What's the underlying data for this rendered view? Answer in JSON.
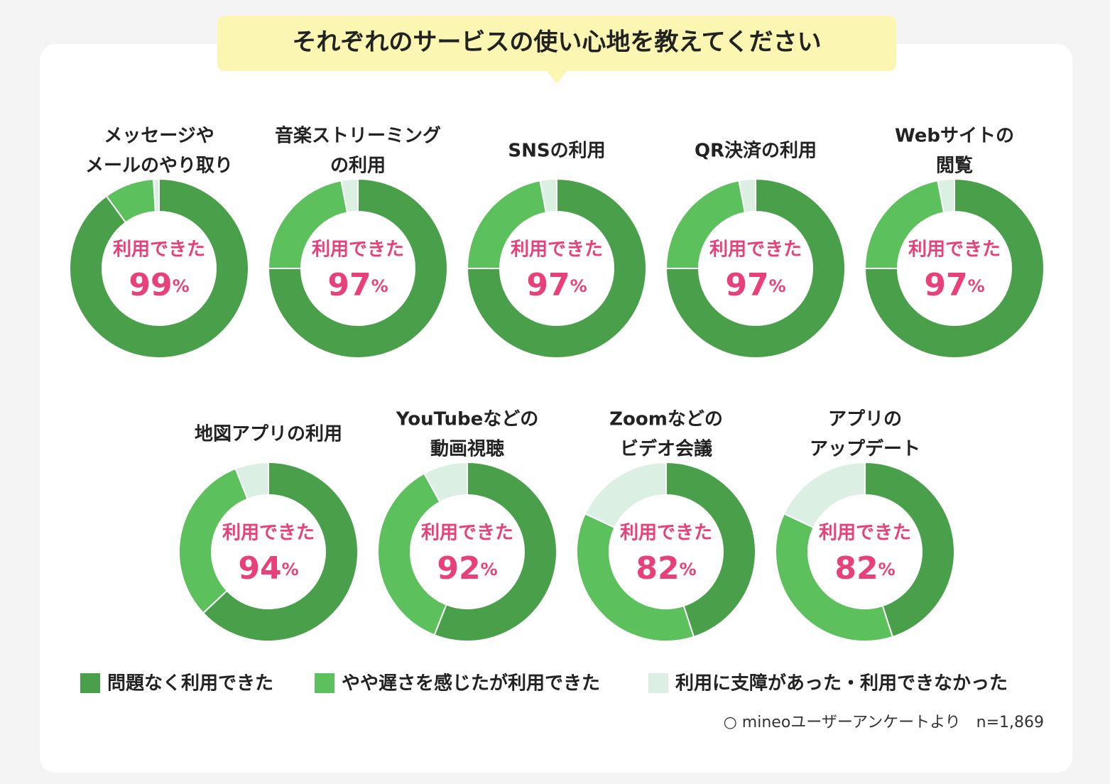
{
  "title": "それぞれのサービスの使い心地を教えてください",
  "legend": [
    {
      "name": "問題なく利用できた",
      "color": "#4aa04a"
    },
    {
      "name": "やや遅さを感じたが利用できた",
      "color": "#5cc05c"
    },
    {
      "name": "利用に支障があった・利用できなかった",
      "color": "#dbefe3"
    }
  ],
  "note": "○ mineoユーザーアンケートより　n=1,869",
  "chart_data": [
    {
      "type": "donut",
      "title": [
        "メッセージや",
        "メールのやり取り"
      ],
      "center_label": "利用できた",
      "center_value": 99,
      "center_unit": "%",
      "values": [
        90,
        9,
        1
      ]
    },
    {
      "type": "donut",
      "title": [
        "音楽ストリーミング",
        "の利用"
      ],
      "center_label": "利用できた",
      "center_value": 97,
      "center_unit": "%",
      "values": [
        75,
        22,
        3
      ]
    },
    {
      "type": "donut",
      "title": [
        "SNSの利用"
      ],
      "center_label": "利用できた",
      "center_value": 97,
      "center_unit": "%",
      "values": [
        75,
        22,
        3
      ]
    },
    {
      "type": "donut",
      "title": [
        "QR決済の利用"
      ],
      "center_label": "利用できた",
      "center_value": 97,
      "center_unit": "%",
      "values": [
        75,
        22,
        3
      ]
    },
    {
      "type": "donut",
      "title": [
        "Webサイトの",
        "閲覧"
      ],
      "center_label": "利用できた",
      "center_value": 97,
      "center_unit": "%",
      "values": [
        75,
        22,
        3
      ]
    },
    {
      "type": "donut",
      "title": [
        "地図アプリの利用"
      ],
      "center_label": "利用できた",
      "center_value": 94,
      "center_unit": "%",
      "values": [
        63,
        31,
        6
      ]
    },
    {
      "type": "donut",
      "title": [
        "YouTubeなどの",
        "動画視聴"
      ],
      "center_label": "利用できた",
      "center_value": 92,
      "center_unit": "%",
      "values": [
        56,
        36,
        8
      ]
    },
    {
      "type": "donut",
      "title": [
        "Zoomなどの",
        "ビデオ会議"
      ],
      "center_label": "利用できた",
      "center_value": 82,
      "center_unit": "%",
      "values": [
        45,
        37,
        18
      ]
    },
    {
      "type": "donut",
      "title": [
        "アプリの",
        "アップデート"
      ],
      "center_label": "利用できた",
      "center_value": 82,
      "center_unit": "%",
      "values": [
        45,
        37,
        18
      ]
    }
  ]
}
